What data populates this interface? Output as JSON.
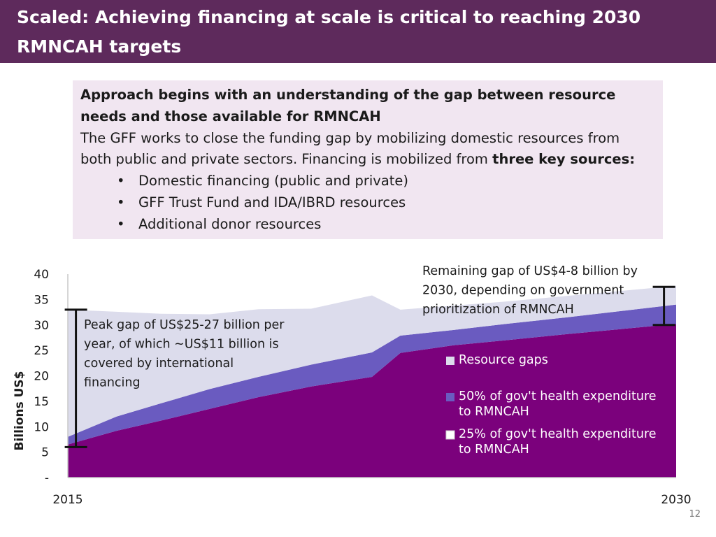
{
  "title": "Scaled: Achieving financing at scale is critical to reaching 2030 RMNCAH targets",
  "approach": {
    "heading": "Approach begins with an understanding of the gap between resource needs and those available for RMNCAH",
    "body_prefix": "The GFF works to close the funding gap by mobilizing domestic resources from both public and private sectors. Financing is mobilized from ",
    "body_bold": "three key sources:",
    "bullet_glyph": "•",
    "bullets": [
      "Domestic financing (public and private)",
      "GFF Trust Fund and IDA/IBRD resources",
      "Additional donor resources"
    ]
  },
  "chart_data": {
    "type": "area",
    "stacked": true,
    "ylabel": "Billions US$",
    "y_ticks": [
      "-",
      "5",
      "10",
      "15",
      "20",
      "25",
      "30",
      "35",
      "40"
    ],
    "y_tick_values": [
      0,
      5,
      10,
      15,
      20,
      25,
      30,
      35,
      40
    ],
    "ylim": [
      0,
      40
    ],
    "x_ticks": [
      "2015",
      "2030"
    ],
    "xlim": [
      2015,
      2030
    ],
    "x": [
      2015,
      2016.2,
      2017.3,
      2018.5,
      2019.7,
      2021,
      2022.5,
      2023.2,
      2024.5,
      2025.8,
      2027.3,
      2030
    ],
    "series": [
      {
        "name": "25% of gov't health expenditure to RMNCAH",
        "values": [
          6.5,
          9.2,
          11.2,
          13.5,
          15.8,
          17.9,
          19.8,
          24.5,
          26.0,
          27.0,
          28.2,
          30.2
        ],
        "color": "#7b017c",
        "legend_color": "#ffffff"
      },
      {
        "name": "50% of gov't health expenditure to RMNCAH",
        "values": [
          1.5,
          2.8,
          3.4,
          3.9,
          4.0,
          4.3,
          4.8,
          3.4,
          3.0,
          3.2,
          3.3,
          3.8
        ],
        "color": "#6a5bc0",
        "legend_color": "#6a5bc0"
      },
      {
        "name": "Resource gaps",
        "values": [
          25.0,
          20.6,
          17.6,
          14.7,
          13.3,
          11.0,
          11.2,
          5.1,
          4.8,
          4.4,
          4.2,
          3.7
        ],
        "color": "#dcdcec",
        "legend_color": "#dcdcec"
      }
    ],
    "annotations": [
      {
        "text": "Peak gap of US$25-27 billion per year, of which ~US$11 billion is covered by international financing",
        "lines": [
          "Peak gap of US$25-27 billion per",
          "year, of which ~US$11 billion is",
          "covered by international",
          "financing"
        ],
        "range": [
          6,
          33
        ],
        "x": 2015.2
      },
      {
        "text": "Remaining gap of US$4-8 billion by 2030, depending on government prioritization of RMNCAH",
        "lines": [
          "Remaining gap of US$4-8 billion by",
          "2030, depending on government",
          "prioritization of RMNCAH"
        ],
        "range": [
          30,
          37.5
        ],
        "x": 2029.7
      }
    ],
    "legend_order": [
      2,
      1,
      0
    ],
    "legend_lines": [
      [
        "Resource gaps"
      ],
      [
        "50% of gov't health expenditure",
        "to RMNCAH"
      ],
      [
        "25% of gov't health expenditure",
        "to RMNCAH"
      ]
    ],
    "legend_position": "lower-right, inside plot"
  },
  "page_number": "12"
}
